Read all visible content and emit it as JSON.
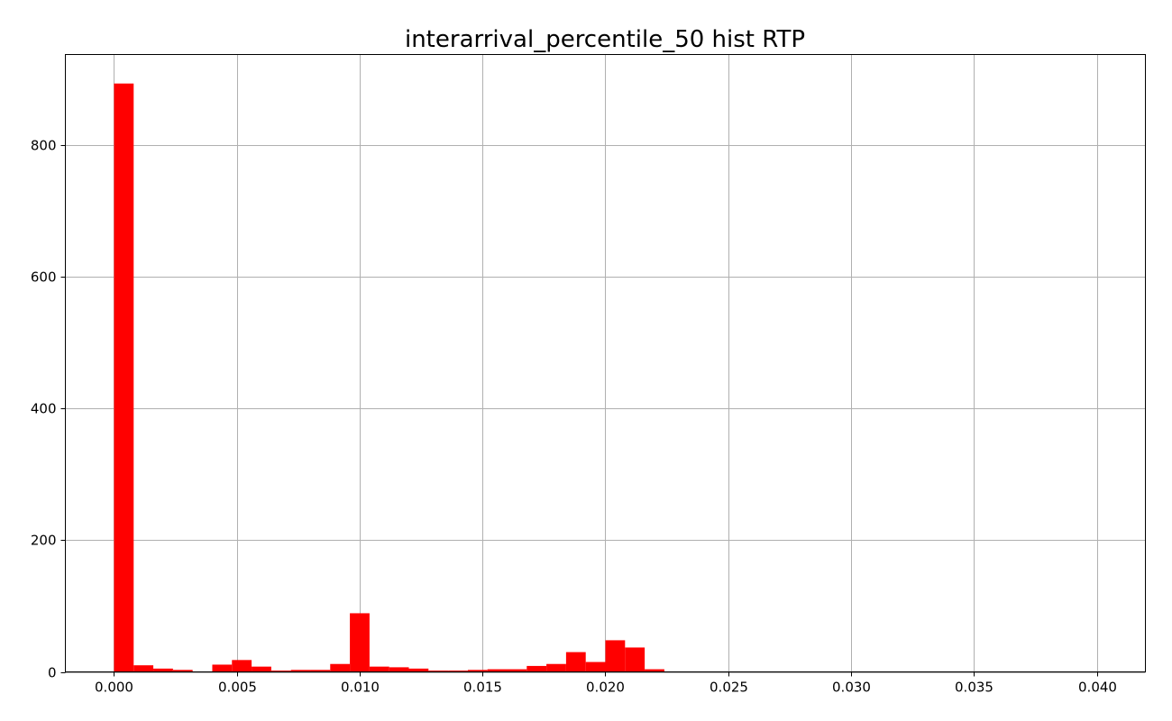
{
  "chart_data": {
    "type": "bar",
    "title": "interarrival_percentile_50 hist RTP",
    "xlabel": "",
    "ylabel": "",
    "xlim": [
      -0.00198,
      0.04198
    ],
    "ylim": [
      0,
      937
    ],
    "x_ticks": [
      0.0,
      0.005,
      0.01,
      0.015,
      0.02,
      0.025,
      0.03,
      0.035,
      0.04
    ],
    "x_tick_labels": [
      "0.000",
      "0.005",
      "0.010",
      "0.015",
      "0.020",
      "0.025",
      "0.030",
      "0.035",
      "0.040"
    ],
    "y_ticks": [
      0,
      200,
      400,
      600,
      800
    ],
    "y_tick_labels": [
      "0",
      "200",
      "400",
      "600",
      "800"
    ],
    "grid": true,
    "bar_color": "#ff0000",
    "bin_width": 0.0008,
    "bins": [
      {
        "x0": 0.0,
        "count": 893
      },
      {
        "x0": 0.0008,
        "count": 10
      },
      {
        "x0": 0.0016,
        "count": 5
      },
      {
        "x0": 0.0024,
        "count": 3
      },
      {
        "x0": 0.0032,
        "count": 0
      },
      {
        "x0": 0.004,
        "count": 11
      },
      {
        "x0": 0.0048,
        "count": 18
      },
      {
        "x0": 0.0056,
        "count": 8
      },
      {
        "x0": 0.0064,
        "count": 2
      },
      {
        "x0": 0.0072,
        "count": 3
      },
      {
        "x0": 0.008,
        "count": 3
      },
      {
        "x0": 0.0088,
        "count": 12
      },
      {
        "x0": 0.0096,
        "count": 89
      },
      {
        "x0": 0.0104,
        "count": 8
      },
      {
        "x0": 0.0112,
        "count": 7
      },
      {
        "x0": 0.012,
        "count": 5
      },
      {
        "x0": 0.0128,
        "count": 2
      },
      {
        "x0": 0.0136,
        "count": 2
      },
      {
        "x0": 0.0144,
        "count": 3
      },
      {
        "x0": 0.0152,
        "count": 4
      },
      {
        "x0": 0.016,
        "count": 4
      },
      {
        "x0": 0.0168,
        "count": 9
      },
      {
        "x0": 0.0176,
        "count": 12
      },
      {
        "x0": 0.0184,
        "count": 30
      },
      {
        "x0": 0.0192,
        "count": 15
      },
      {
        "x0": 0.02,
        "count": 48
      },
      {
        "x0": 0.0208,
        "count": 37
      },
      {
        "x0": 0.0216,
        "count": 4
      }
    ]
  }
}
